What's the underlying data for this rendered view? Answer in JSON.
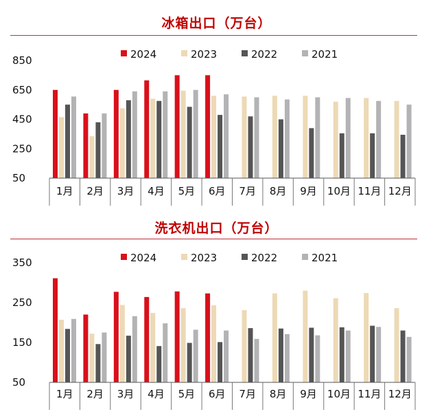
{
  "colors": {
    "2024": "#d9101a",
    "2023": "#edd9b5",
    "2022": "#555555",
    "2021": "#b3b3b5"
  },
  "chart_data": [
    {
      "type": "bar",
      "title": "冰箱出口（万台）",
      "categories": [
        "1月",
        "2月",
        "3月",
        "4月",
        "5月",
        "6月",
        "7月",
        "8月",
        "9月",
        "10月",
        "11月",
        "12月"
      ],
      "ylim": [
        50,
        850
      ],
      "yticks": [
        50,
        250,
        450,
        650,
        850
      ],
      "legend_position": "top",
      "series": [
        {
          "name": "2024",
          "values": [
            650,
            490,
            650,
            715,
            750,
            750,
            null,
            null,
            null,
            null,
            null,
            null
          ]
        },
        {
          "name": "2023",
          "values": [
            465,
            335,
            525,
            590,
            645,
            610,
            605,
            610,
            610,
            570,
            595,
            575
          ]
        },
        {
          "name": "2022",
          "values": [
            550,
            430,
            580,
            575,
            535,
            480,
            470,
            450,
            390,
            355,
            355,
            345
          ]
        },
        {
          "name": "2021",
          "values": [
            605,
            490,
            640,
            640,
            650,
            620,
            600,
            585,
            600,
            595,
            575,
            550
          ]
        }
      ]
    },
    {
      "type": "bar",
      "title": "洗衣机出口（万台）",
      "categories": [
        "1月",
        "2月",
        "3月",
        "4月",
        "5月",
        "6月",
        "7月",
        "8月",
        "9月",
        "10月",
        "11月",
        "12月"
      ],
      "ylim": [
        50,
        350
      ],
      "yticks": [
        50,
        150,
        250,
        350
      ],
      "legend_position": "top",
      "series": [
        {
          "name": "2024",
          "values": [
            311,
            220,
            277,
            264,
            278,
            273,
            null,
            null,
            null,
            null,
            null,
            null
          ]
        },
        {
          "name": "2023",
          "values": [
            207,
            172,
            244,
            224,
            236,
            243,
            231,
            273,
            280,
            261,
            274,
            236
          ]
        },
        {
          "name": "2022",
          "values": [
            184,
            146,
            167,
            141,
            149,
            151,
            186,
            185,
            187,
            188,
            192,
            180
          ]
        },
        {
          "name": "2021",
          "values": [
            209,
            175,
            216,
            198,
            182,
            180,
            159,
            171,
            168,
            180,
            189,
            164
          ]
        }
      ]
    }
  ]
}
